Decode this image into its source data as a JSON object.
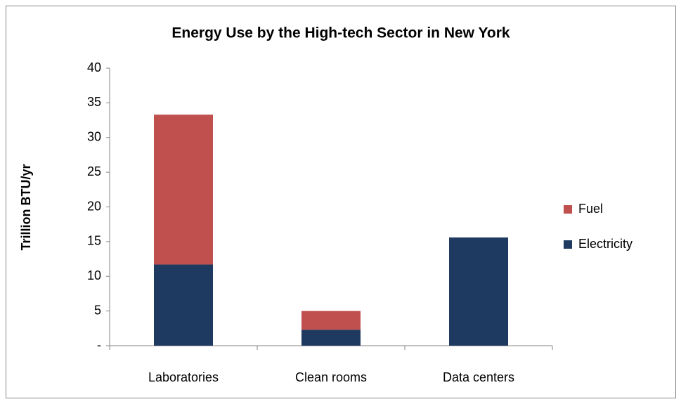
{
  "chart_data": {
    "type": "stacked_bar",
    "title": "Energy Use by the High-tech Sector in New York",
    "y_label": "Trillion BTU/yr",
    "categories": [
      "Laboratories",
      "Clean rooms",
      "Data centers"
    ],
    "series": [
      {
        "name": "Electricity",
        "color": "#1f3a60",
        "values": [
          11.7,
          2.3,
          15.6
        ]
      },
      {
        "name": "Fuel",
        "color": "#c0504d",
        "values": [
          21.6,
          2.7,
          0
        ]
      }
    ],
    "ylim": [
      0,
      40
    ],
    "yticks": [
      {
        "value": 0,
        "label": "-"
      },
      5,
      10,
      15,
      20,
      25,
      30,
      35,
      40
    ],
    "grid": false,
    "legend": "right"
  }
}
